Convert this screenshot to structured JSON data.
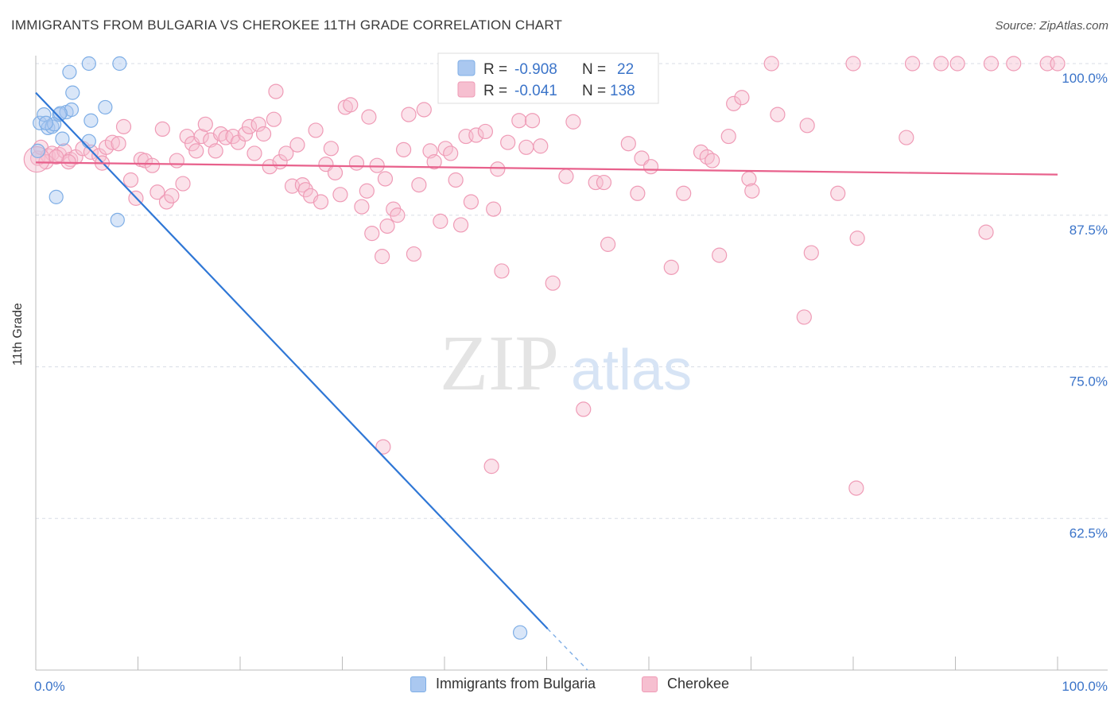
{
  "header": {
    "title": "IMMIGRANTS FROM BULGARIA VS CHEROKEE 11TH GRADE CORRELATION CHART",
    "source": "Source: ZipAtlas.com"
  },
  "watermark": {
    "zip": "ZIP",
    "atlas": "atlas"
  },
  "colors": {
    "blue": "#2f77d6",
    "blue_fill": "#aac8f0",
    "blue_stroke": "#7eaee6",
    "pink": "#e8618c",
    "pink_fill": "#f6bfd0",
    "pink_stroke": "#ef9bb6",
    "tick_text": "#3b74c9",
    "grid": "#d8dde6"
  },
  "legend": {
    "rows": [
      {
        "r_label": "R =",
        "r_value": "-0.908",
        "n_label": "N =",
        "n_value": "22"
      },
      {
        "r_label": "R =",
        "r_value": "-0.041",
        "n_label": "N =",
        "n_value": "138"
      }
    ]
  },
  "bottom_legend": {
    "series1": "Immigrants from Bulgaria",
    "series2": "Cherokee"
  },
  "chart_data": {
    "type": "scatter",
    "title": "IMMIGRANTS FROM BULGARIA VS CHEROKEE 11TH GRADE CORRELATION CHART",
    "xlabel": "",
    "ylabel": "11th Grade",
    "xlim": [
      0,
      100
    ],
    "ylim": [
      50,
      100
    ],
    "x_tick_labels": [
      "0.0%",
      "100.0%"
    ],
    "y_ticks": [
      100,
      87.5,
      75,
      62.5
    ],
    "y_tick_labels": [
      "100.0%",
      "87.5%",
      "75.0%",
      "62.5%"
    ],
    "grid": true,
    "series": [
      {
        "name": "Immigrants from Bulgaria",
        "color": "#2f77d6",
        "r": -0.908,
        "n": 22,
        "trend": {
          "x": [
            0,
            50.1
          ],
          "y": [
            97.6,
            53.4
          ],
          "dashed_to": [
            54,
            50
          ]
        },
        "points": [
          [
            0.4,
            95.1
          ],
          [
            0.8,
            95.8
          ],
          [
            1.2,
            94.7
          ],
          [
            1.6,
            94.8
          ],
          [
            1.8,
            95.0
          ],
          [
            2.0,
            89.0
          ],
          [
            2.3,
            95.8
          ],
          [
            2.6,
            93.8
          ],
          [
            3.0,
            96.0
          ],
          [
            3.3,
            99.3
          ],
          [
            3.5,
            96.2
          ],
          [
            3.6,
            97.6
          ],
          [
            5.2,
            100.0
          ],
          [
            5.4,
            95.3
          ],
          [
            5.2,
            93.6
          ],
          [
            6.8,
            96.4
          ],
          [
            8.2,
            100.0
          ],
          [
            8.0,
            87.1
          ],
          [
            0.2,
            92.8
          ],
          [
            47.4,
            53.1
          ],
          [
            1.0,
            95.1
          ],
          [
            2.4,
            95.9
          ]
        ]
      },
      {
        "name": "Cherokee",
        "color": "#e8618c",
        "r": -0.041,
        "n": 138,
        "trend": {
          "x": [
            0,
            100
          ],
          "y": [
            91.85,
            90.85
          ]
        },
        "points": [
          [
            0.2,
            92.2
          ],
          [
            0.5,
            93.1
          ],
          [
            1.2,
            92.4
          ],
          [
            1.6,
            92.6
          ],
          [
            2.3,
            92.5
          ],
          [
            2.8,
            92.8
          ],
          [
            3.4,
            92.1
          ],
          [
            3.9,
            92.3
          ],
          [
            4.6,
            93.0
          ],
          [
            5.4,
            92.7
          ],
          [
            6.2,
            92.4
          ],
          [
            6.9,
            93.1
          ],
          [
            7.5,
            93.5
          ],
          [
            8.1,
            93.4
          ],
          [
            8.6,
            94.8
          ],
          [
            9.3,
            90.4
          ],
          [
            9.8,
            88.9
          ],
          [
            10.3,
            92.1
          ],
          [
            10.7,
            92.0
          ],
          [
            11.4,
            91.6
          ],
          [
            11.9,
            89.4
          ],
          [
            12.4,
            94.6
          ],
          [
            12.8,
            88.6
          ],
          [
            13.3,
            89.1
          ],
          [
            13.8,
            92.0
          ],
          [
            14.4,
            90.1
          ],
          [
            14.8,
            94.0
          ],
          [
            15.3,
            93.4
          ],
          [
            15.7,
            92.8
          ],
          [
            16.2,
            94.0
          ],
          [
            16.6,
            95.0
          ],
          [
            17.1,
            93.7
          ],
          [
            17.6,
            92.8
          ],
          [
            18.1,
            94.2
          ],
          [
            18.6,
            93.9
          ],
          [
            19.3,
            94.0
          ],
          [
            19.8,
            93.5
          ],
          [
            20.5,
            94.2
          ],
          [
            20.9,
            94.8
          ],
          [
            21.4,
            92.6
          ],
          [
            21.8,
            95.0
          ],
          [
            22.3,
            94.2
          ],
          [
            22.9,
            91.5
          ],
          [
            23.3,
            95.4
          ],
          [
            23.9,
            91.9
          ],
          [
            24.5,
            92.6
          ],
          [
            25.1,
            89.9
          ],
          [
            25.6,
            93.3
          ],
          [
            26.1,
            90.0
          ],
          [
            26.4,
            89.6
          ],
          [
            26.9,
            89.1
          ],
          [
            27.4,
            94.5
          ],
          [
            27.9,
            88.6
          ],
          [
            28.4,
            91.7
          ],
          [
            28.9,
            93.0
          ],
          [
            29.3,
            91.0
          ],
          [
            29.8,
            89.2
          ],
          [
            30.3,
            96.4
          ],
          [
            30.8,
            96.6
          ],
          [
            31.4,
            91.8
          ],
          [
            31.9,
            88.2
          ],
          [
            32.4,
            89.5
          ],
          [
            32.9,
            86.0
          ],
          [
            33.4,
            91.6
          ],
          [
            33.9,
            84.1
          ],
          [
            34.4,
            86.6
          ],
          [
            35.0,
            88.0
          ],
          [
            35.4,
            87.5
          ],
          [
            36.0,
            92.9
          ],
          [
            36.5,
            95.8
          ],
          [
            37.0,
            84.3
          ],
          [
            37.5,
            90.0
          ],
          [
            38.0,
            96.2
          ],
          [
            38.6,
            92.8
          ],
          [
            39.0,
            91.9
          ],
          [
            39.6,
            87.0
          ],
          [
            40.1,
            93.0
          ],
          [
            40.6,
            92.6
          ],
          [
            41.1,
            90.4
          ],
          [
            41.6,
            86.7
          ],
          [
            42.1,
            94.0
          ],
          [
            42.6,
            88.6
          ],
          [
            43.1,
            94.1
          ],
          [
            44.0,
            94.4
          ],
          [
            45.6,
            82.9
          ],
          [
            46.2,
            93.5
          ],
          [
            47.3,
            95.3
          ],
          [
            48.0,
            93.1
          ],
          [
            48.6,
            95.3
          ],
          [
            49.4,
            93.2
          ],
          [
            50.6,
            81.9
          ],
          [
            51.9,
            90.7
          ],
          [
            52.6,
            95.2
          ],
          [
            54.8,
            90.2
          ],
          [
            55.6,
            90.2
          ],
          [
            56.0,
            85.1
          ],
          [
            58.0,
            93.4
          ],
          [
            58.9,
            89.3
          ],
          [
            59.3,
            92.2
          ],
          [
            60.2,
            91.5
          ],
          [
            62.2,
            83.2
          ],
          [
            63.4,
            89.3
          ],
          [
            65.1,
            92.7
          ],
          [
            65.7,
            92.3
          ],
          [
            66.2,
            92.0
          ],
          [
            66.9,
            84.2
          ],
          [
            67.8,
            94.0
          ],
          [
            68.3,
            96.7
          ],
          [
            69.1,
            97.2
          ],
          [
            69.8,
            90.5
          ],
          [
            70.1,
            89.5
          ],
          [
            72.0,
            100.0
          ],
          [
            72.6,
            95.8
          ],
          [
            75.5,
            94.9
          ],
          [
            75.9,
            84.4
          ],
          [
            75.2,
            79.1
          ],
          [
            78.5,
            89.3
          ],
          [
            80.0,
            100.0
          ],
          [
            80.4,
            85.6
          ],
          [
            85.2,
            93.9
          ],
          [
            85.8,
            100.0
          ],
          [
            88.6,
            100.0
          ],
          [
            90.2,
            100.0
          ],
          [
            93.0,
            86.1
          ],
          [
            93.5,
            100.0
          ],
          [
            95.7,
            100.0
          ],
          [
            99.0,
            100.0
          ],
          [
            100.0,
            100.0
          ],
          [
            47.8,
            100.0
          ],
          [
            57.6,
            100.0
          ],
          [
            60.1,
            100.0
          ],
          [
            23.5,
            97.7
          ],
          [
            32.6,
            95.6
          ],
          [
            34.2,
            90.5
          ],
          [
            34.0,
            68.4
          ],
          [
            44.6,
            66.8
          ],
          [
            53.6,
            71.5
          ],
          [
            80.3,
            65.0
          ],
          [
            45.2,
            91.3
          ],
          [
            44.8,
            88.0
          ],
          [
            6.5,
            91.8
          ],
          [
            3.2,
            91.9
          ],
          [
            1.0,
            91.9
          ],
          [
            2.0,
            92.3
          ]
        ]
      }
    ]
  }
}
